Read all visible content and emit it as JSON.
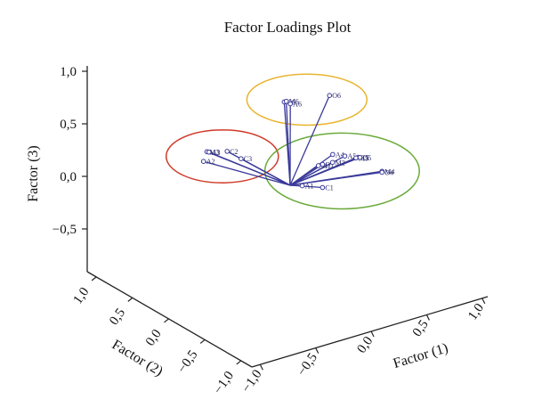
{
  "chart_data": {
    "type": "scatter",
    "title": "Factor Loadings Plot",
    "xlabel": "Factor (1)",
    "ylabel": "Factor (2)",
    "zlabel": "Factor (3)",
    "x_ticks": [
      "−1,0",
      "−0,5",
      "0,0",
      "0,5",
      "1,0"
    ],
    "y_ticks": [
      "1,0",
      "0,5",
      "0,0",
      "−0,5",
      "−1,0"
    ],
    "z_ticks": [
      "1,0",
      "0,5",
      "0,0",
      "−0,5"
    ],
    "xlim": [
      -1,
      1
    ],
    "ylim": [
      -1,
      1
    ],
    "zlim": [
      -0.8,
      1
    ],
    "points": [
      {
        "label": "A2",
        "x": -0.42,
        "y": 0.45,
        "z": 0.14
      },
      {
        "label": "M3",
        "x": -0.36,
        "y": 0.48,
        "z": 0.2
      },
      {
        "label": "A3",
        "x": -0.34,
        "y": 0.48,
        "z": 0.19
      },
      {
        "label": "C2",
        "x": -0.22,
        "y": 0.42,
        "z": 0.19
      },
      {
        "label": "C3",
        "x": -0.16,
        "y": 0.34,
        "z": 0.14
      },
      {
        "label": "C6",
        "x": -0.02,
        "y": 0.04,
        "z": 0.78
      },
      {
        "label": "M6",
        "x": 0.0,
        "y": 0.04,
        "z": 0.78
      },
      {
        "label": "A6",
        "x": 0.02,
        "y": 0.02,
        "z": 0.76
      },
      {
        "label": "O6",
        "x": 0.38,
        "y": 0.0,
        "z": 0.74
      },
      {
        "label": "A4",
        "x": 0.3,
        "y": -0.12,
        "z": 0.26
      },
      {
        "label": "A5",
        "x": 0.38,
        "y": -0.16,
        "z": 0.24
      },
      {
        "label": "M1",
        "x": 0.18,
        "y": -0.1,
        "z": 0.18
      },
      {
        "label": "O1",
        "x": 0.22,
        "y": -0.1,
        "z": 0.18
      },
      {
        "label": "M2",
        "x": 0.28,
        "y": -0.14,
        "z": 0.2
      },
      {
        "label": "C5",
        "x": 0.47,
        "y": -0.2,
        "z": 0.22
      },
      {
        "label": "M5",
        "x": 0.45,
        "y": -0.2,
        "z": 0.22
      },
      {
        "label": "O5",
        "x": 0.48,
        "y": -0.21,
        "z": 0.22
      },
      {
        "label": "C1",
        "x": 0.22,
        "y": -0.1,
        "z": -0.04
      },
      {
        "label": "A1",
        "x": 0.08,
        "y": -0.04,
        "z": -0.01
      },
      {
        "label": "M4",
        "x": 0.6,
        "y": -0.31,
        "z": 0.1
      },
      {
        "label": "O4",
        "x": 0.6,
        "y": -0.31,
        "z": 0.09
      }
    ],
    "clusters": [
      {
        "color": "#e8b430",
        "members": [
          "C6",
          "M6",
          "A6",
          "O6"
        ]
      },
      {
        "color": "#d03a28",
        "members": [
          "A2",
          "M3",
          "A3",
          "C2",
          "C3"
        ]
      },
      {
        "color": "#6aaa3a",
        "members": [
          "A4",
          "A5",
          "M1",
          "O1",
          "M2",
          "C5",
          "M5",
          "O5",
          "C1",
          "A1",
          "M4",
          "O4"
        ]
      }
    ],
    "series_color": "#3a3a9a",
    "grid": false
  }
}
